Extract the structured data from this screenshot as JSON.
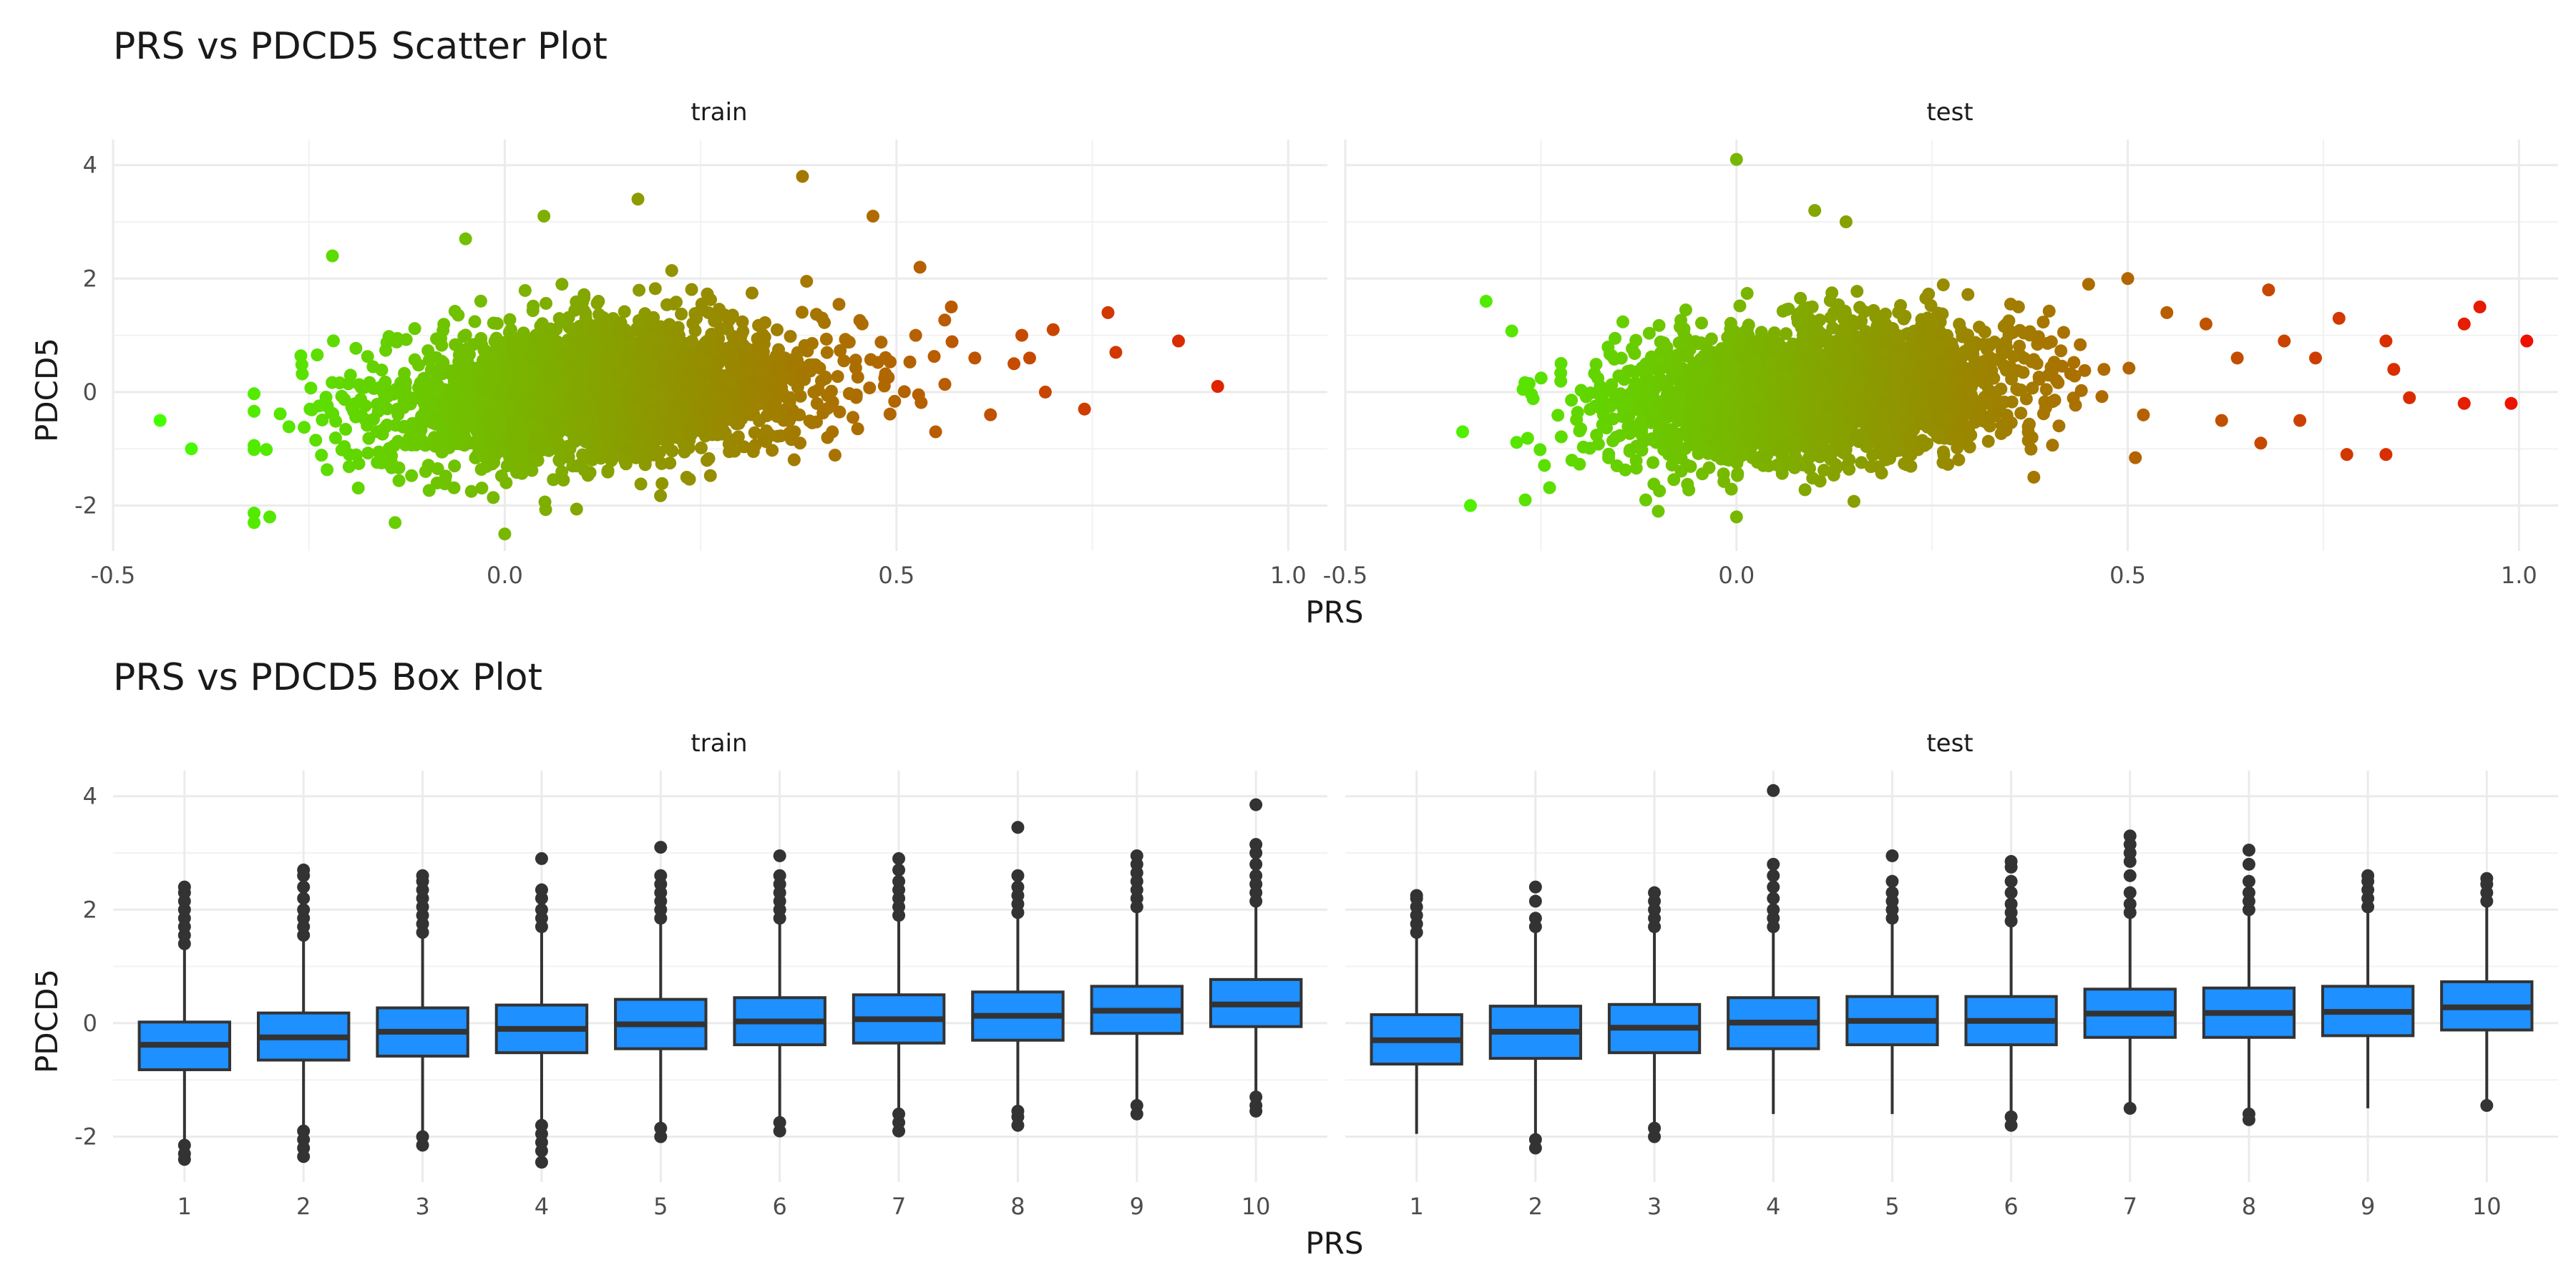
{
  "chart_data": [
    {
      "type": "scatter",
      "title": "PRS vs PDCD5 Scatter Plot",
      "xlabel": "PRS",
      "ylabel": "PDCD5",
      "facets": [
        "train",
        "test"
      ],
      "xlim": [
        -0.5,
        1.05
      ],
      "ylim": [
        -2.8,
        4.45
      ],
      "x_ticks": [
        -0.5,
        0.0,
        0.5,
        1.0
      ],
      "x_tick_labels": [
        "-0.5",
        "0.0",
        "0.5",
        "1.0"
      ],
      "y_ticks": [
        -2,
        0,
        2,
        4
      ],
      "y_tick_labels": [
        "-2",
        "0",
        "2",
        "4"
      ],
      "grid": true,
      "color_scale": {
        "low": "#44ff00",
        "high": "#ee1100",
        "mapped_to": "PRS"
      },
      "bulk_cloud": {
        "train": {
          "prs_mean": 0.12,
          "prs_sd": 0.14,
          "pdcd5_sd": 0.62,
          "prs_min": -0.32,
          "prs_max": 0.58
        },
        "test": {
          "prs_mean": 0.1,
          "prs_sd": 0.13,
          "pdcd5_sd": 0.58,
          "prs_min": -0.34,
          "prs_max": 0.52
        }
      },
      "outlier_points": {
        "train": [
          [
            -0.44,
            -0.5
          ],
          [
            -0.4,
            -1.0
          ],
          [
            -0.32,
            -2.3
          ],
          [
            -0.3,
            -2.2
          ],
          [
            -0.22,
            2.4
          ],
          [
            -0.05,
            2.7
          ],
          [
            0.05,
            3.1
          ],
          [
            0.17,
            3.4
          ],
          [
            0.38,
            3.8
          ],
          [
            0.47,
            3.1
          ],
          [
            0.53,
            2.2
          ],
          [
            0.57,
            1.5
          ],
          [
            0.6,
            0.6
          ],
          [
            0.65,
            0.5
          ],
          [
            0.66,
            1.0
          ],
          [
            0.67,
            0.6
          ],
          [
            0.69,
            0.0
          ],
          [
            0.7,
            1.1
          ],
          [
            0.74,
            -0.3
          ],
          [
            0.77,
            1.4
          ],
          [
            0.78,
            0.7
          ],
          [
            0.86,
            0.9
          ],
          [
            0.91,
            0.1
          ],
          [
            0.62,
            -0.4
          ],
          [
            0.55,
            -0.7
          ],
          [
            0.0,
            -2.5
          ],
          [
            -0.14,
            -2.3
          ]
        ],
        "test": [
          [
            -0.35,
            -0.7
          ],
          [
            -0.34,
            -2.0
          ],
          [
            -0.32,
            1.6
          ],
          [
            -0.27,
            -1.9
          ],
          [
            0.0,
            4.1
          ],
          [
            0.1,
            3.2
          ],
          [
            0.14,
            3.0
          ],
          [
            0.45,
            1.9
          ],
          [
            0.5,
            2.0
          ],
          [
            0.55,
            1.4
          ],
          [
            0.6,
            1.2
          ],
          [
            0.62,
            -0.5
          ],
          [
            0.64,
            0.6
          ],
          [
            0.67,
            -0.9
          ],
          [
            0.68,
            1.8
          ],
          [
            0.7,
            0.9
          ],
          [
            0.72,
            -0.5
          ],
          [
            0.74,
            0.6
          ],
          [
            0.77,
            1.3
          ],
          [
            0.78,
            -1.1
          ],
          [
            0.84,
            0.4
          ],
          [
            0.86,
            -0.1
          ],
          [
            0.95,
            1.5
          ],
          [
            0.83,
            0.9
          ],
          [
            0.83,
            -1.1
          ],
          [
            0.93,
            1.2
          ],
          [
            0.93,
            -0.2
          ],
          [
            0.99,
            -0.2
          ],
          [
            1.01,
            0.9
          ],
          [
            0.38,
            -1.5
          ],
          [
            0.0,
            -2.2
          ],
          [
            -0.1,
            -2.1
          ]
        ]
      }
    },
    {
      "type": "box",
      "title": "PRS vs PDCD5 Box Plot",
      "xlabel": "PRS",
      "ylabel": "PDCD5",
      "facets": [
        "train",
        "test"
      ],
      "ylim": [
        -2.8,
        4.45
      ],
      "y_ticks": [
        -2,
        0,
        2,
        4
      ],
      "y_tick_labels": [
        "-2",
        "0",
        "2",
        "4"
      ],
      "categories": [
        "1",
        "2",
        "3",
        "4",
        "5",
        "6",
        "7",
        "8",
        "9",
        "10"
      ],
      "box_color": "#1e90ff",
      "grid": true,
      "boxes": {
        "train": [
          {
            "q1": -0.82,
            "median": -0.38,
            "q3": 0.02,
            "lo": -2.05,
            "hi": 1.3,
            "outliers": [
              1.4,
              1.55,
              1.7,
              1.85,
              2.0,
              2.15,
              2.3,
              2.4,
              -2.15,
              -2.3,
              -2.4
            ]
          },
          {
            "q1": -0.65,
            "median": -0.25,
            "q3": 0.18,
            "lo": -1.8,
            "hi": 1.45,
            "outliers": [
              1.55,
              1.7,
              1.85,
              2.0,
              2.2,
              2.4,
              2.6,
              2.7,
              -1.9,
              -2.05,
              -2.2,
              -2.35
            ]
          },
          {
            "q1": -0.58,
            "median": -0.15,
            "q3": 0.27,
            "lo": -1.9,
            "hi": 1.55,
            "outliers": [
              1.6,
              1.75,
              1.9,
              2.05,
              2.2,
              2.35,
              2.5,
              2.6,
              -2.0,
              -2.15
            ]
          },
          {
            "q1": -0.52,
            "median": -0.1,
            "q3": 0.32,
            "lo": -1.7,
            "hi": 1.6,
            "outliers": [
              1.7,
              1.85,
              2.0,
              2.2,
              2.35,
              2.9,
              -1.8,
              -1.95,
              -2.1,
              -2.25,
              -2.45
            ]
          },
          {
            "q1": -0.45,
            "median": -0.02,
            "q3": 0.42,
            "lo": -1.75,
            "hi": 1.75,
            "outliers": [
              1.85,
              2.0,
              2.15,
              2.3,
              2.45,
              2.6,
              3.1,
              -1.85,
              -2.0
            ]
          },
          {
            "q1": -0.38,
            "median": 0.03,
            "q3": 0.45,
            "lo": -1.65,
            "hi": 1.75,
            "outliers": [
              1.85,
              2.0,
              2.15,
              2.3,
              2.45,
              2.6,
              2.95,
              -1.75,
              -1.9
            ]
          },
          {
            "q1": -0.35,
            "median": 0.07,
            "q3": 0.5,
            "lo": -1.5,
            "hi": 1.8,
            "outliers": [
              1.9,
              2.05,
              2.2,
              2.35,
              2.5,
              2.7,
              2.9,
              -1.6,
              -1.75,
              -1.9
            ]
          },
          {
            "q1": -0.3,
            "median": 0.13,
            "q3": 0.55,
            "lo": -1.45,
            "hi": 1.85,
            "outliers": [
              1.95,
              2.1,
              2.25,
              2.4,
              2.6,
              3.45,
              -1.55,
              -1.65,
              -1.8
            ]
          },
          {
            "q1": -0.18,
            "median": 0.22,
            "q3": 0.65,
            "lo": -1.4,
            "hi": 1.95,
            "outliers": [
              2.05,
              2.2,
              2.35,
              2.5,
              2.65,
              2.8,
              2.95,
              -1.45,
              -1.6
            ]
          },
          {
            "q1": -0.06,
            "median": 0.33,
            "q3": 0.77,
            "lo": -1.2,
            "hi": 2.05,
            "outliers": [
              2.15,
              2.3,
              2.45,
              2.6,
              2.8,
              3.0,
              3.15,
              3.85,
              -1.3,
              -1.45,
              -1.55
            ]
          }
        ],
        "test": [
          {
            "q1": -0.72,
            "median": -0.3,
            "q3": 0.15,
            "lo": -1.95,
            "hi": 1.5,
            "outliers": [
              1.6,
              1.75,
              1.9,
              2.05,
              2.2,
              2.25
            ]
          },
          {
            "q1": -0.62,
            "median": -0.15,
            "q3": 0.3,
            "lo": -1.95,
            "hi": 1.6,
            "outliers": [
              1.7,
              1.85,
              2.15,
              2.4,
              -2.05,
              -2.2
            ]
          },
          {
            "q1": -0.52,
            "median": -0.08,
            "q3": 0.33,
            "lo": -1.75,
            "hi": 1.6,
            "outliers": [
              1.7,
              1.85,
              2.0,
              2.15,
              2.3,
              -1.85,
              -2.0
            ]
          },
          {
            "q1": -0.45,
            "median": 0.01,
            "q3": 0.45,
            "lo": -1.6,
            "hi": 1.6,
            "outliers": [
              1.7,
              1.85,
              2.0,
              2.2,
              2.4,
              2.6,
              2.8,
              4.1
            ]
          },
          {
            "q1": -0.38,
            "median": 0.04,
            "q3": 0.47,
            "lo": -1.6,
            "hi": 1.75,
            "outliers": [
              1.85,
              2.0,
              2.15,
              2.3,
              2.5,
              2.95
            ]
          },
          {
            "q1": -0.38,
            "median": 0.04,
            "q3": 0.47,
            "lo": -1.55,
            "hi": 1.7,
            "outliers": [
              1.8,
              1.95,
              2.1,
              2.3,
              2.5,
              2.75,
              2.85,
              -1.65,
              -1.8
            ]
          },
          {
            "q1": -0.25,
            "median": 0.17,
            "q3": 0.6,
            "lo": -1.45,
            "hi": 1.85,
            "outliers": [
              1.95,
              2.1,
              2.3,
              2.6,
              2.85,
              3.0,
              3.15,
              3.3,
              -1.5
            ]
          },
          {
            "q1": -0.25,
            "median": 0.18,
            "q3": 0.62,
            "lo": -1.5,
            "hi": 1.9,
            "outliers": [
              2.0,
              2.15,
              2.3,
              2.5,
              2.8,
              3.05,
              -1.6,
              -1.7
            ]
          },
          {
            "q1": -0.22,
            "median": 0.2,
            "q3": 0.65,
            "lo": -1.5,
            "hi": 1.95,
            "outliers": [
              2.05,
              2.2,
              2.35,
              2.5,
              2.6
            ]
          },
          {
            "q1": -0.12,
            "median": 0.28,
            "q3": 0.73,
            "lo": -1.35,
            "hi": 2.05,
            "outliers": [
              2.15,
              2.3,
              2.45,
              2.55,
              -1.45
            ]
          }
        ]
      }
    }
  ]
}
